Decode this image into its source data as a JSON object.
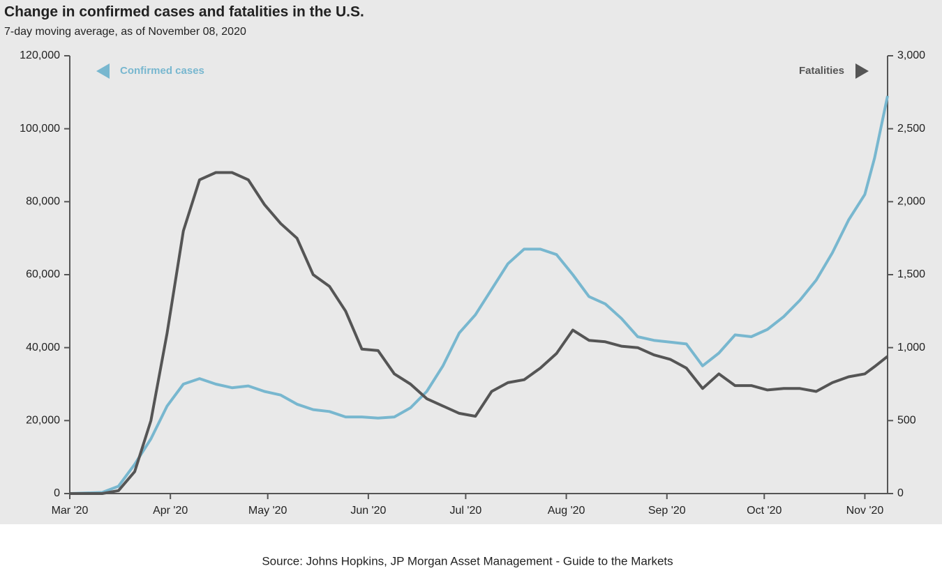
{
  "chart_data": {
    "type": "line",
    "title": "Change in confirmed cases and fatalities in the U.S.",
    "subtitle": "7-day moving average, as of November 08, 2020",
    "source": "Source: Johns Hopkins, JP Morgan Asset Management - Guide to the Markets",
    "x": [
      "2020-03-01",
      "2020-03-11",
      "2020-03-16",
      "2020-03-21",
      "2020-03-26",
      "2020-03-31",
      "2020-04-05",
      "2020-04-10",
      "2020-04-15",
      "2020-04-20",
      "2020-04-25",
      "2020-04-30",
      "2020-05-05",
      "2020-05-10",
      "2020-05-15",
      "2020-05-20",
      "2020-05-25",
      "2020-05-30",
      "2020-06-04",
      "2020-06-09",
      "2020-06-14",
      "2020-06-19",
      "2020-06-24",
      "2020-06-29",
      "2020-07-04",
      "2020-07-09",
      "2020-07-14",
      "2020-07-19",
      "2020-07-24",
      "2020-07-29",
      "2020-08-03",
      "2020-08-08",
      "2020-08-13",
      "2020-08-18",
      "2020-08-23",
      "2020-08-28",
      "2020-09-02",
      "2020-09-07",
      "2020-09-12",
      "2020-09-17",
      "2020-09-22",
      "2020-09-27",
      "2020-10-02",
      "2020-10-07",
      "2020-10-12",
      "2020-10-17",
      "2020-10-22",
      "2020-10-27",
      "2020-11-01",
      "2020-11-04",
      "2020-11-08"
    ],
    "series": [
      {
        "name": "Confirmed cases",
        "color": "#78b7cf",
        "axis": "y",
        "values": [
          0,
          300,
          2000,
          8000,
          15000,
          24000,
          30000,
          31500,
          30000,
          29000,
          29500,
          28000,
          27000,
          24500,
          23000,
          22500,
          21000,
          21000,
          20700,
          21000,
          23500,
          28000,
          35000,
          44000,
          49000,
          56000,
          63000,
          67000,
          67000,
          65500,
          60000,
          54000,
          52000,
          48000,
          43000,
          42000,
          41500,
          41000,
          35000,
          38500,
          43500,
          43000,
          45000,
          48500,
          53000,
          58500,
          66000,
          75000,
          82000,
          92000,
          109000
        ]
      },
      {
        "name": "Fatalities",
        "color": "#555555",
        "axis": "y2",
        "values": [
          0,
          0,
          20,
          150,
          500,
          1100,
          1800,
          2150,
          2200,
          2200,
          2150,
          1980,
          1850,
          1750,
          1500,
          1420,
          1250,
          990,
          980,
          820,
          750,
          650,
          600,
          550,
          530,
          700,
          760,
          780,
          860,
          960,
          1120,
          1050,
          1040,
          1010,
          1000,
          950,
          920,
          860,
          720,
          820,
          740,
          740,
          710,
          720,
          720,
          700,
          760,
          800,
          820,
          870,
          940
        ]
      }
    ],
    "xlim": [
      "2020-03-01",
      "2020-11-08"
    ],
    "xticks": [
      {
        "value": "2020-03-01",
        "label": "Mar '20"
      },
      {
        "value": "2020-04-01",
        "label": "Apr '20"
      },
      {
        "value": "2020-05-01",
        "label": "May '20"
      },
      {
        "value": "2020-06-01",
        "label": "Jun '20"
      },
      {
        "value": "2020-07-01",
        "label": "Jul '20"
      },
      {
        "value": "2020-08-01",
        "label": "Aug '20"
      },
      {
        "value": "2020-09-01",
        "label": "Sep '20"
      },
      {
        "value": "2020-10-01",
        "label": "Oct '20"
      },
      {
        "value": "2020-11-01",
        "label": "Nov '20"
      }
    ],
    "ylim": [
      0,
      120000
    ],
    "yticks": [
      0,
      {
        "value": 20000,
        "label": "20,000"
      },
      {
        "value": 40000,
        "label": "40,000"
      },
      {
        "value": 60000,
        "label": "60,000"
      },
      {
        "value": 80000,
        "label": "80,000"
      },
      {
        "value": 100000,
        "label": "100,000"
      },
      {
        "value": 120000,
        "label": "120,000"
      }
    ],
    "y2lim": [
      0,
      3000
    ],
    "y2ticks": [
      0,
      500,
      {
        "value": 1000,
        "label": "1,000"
      },
      {
        "value": 1500,
        "label": "1,500"
      },
      {
        "value": 2000,
        "label": "2,000"
      },
      {
        "value": 2500,
        "label": "2,500"
      },
      {
        "value": 3000,
        "label": "3,000"
      }
    ]
  }
}
